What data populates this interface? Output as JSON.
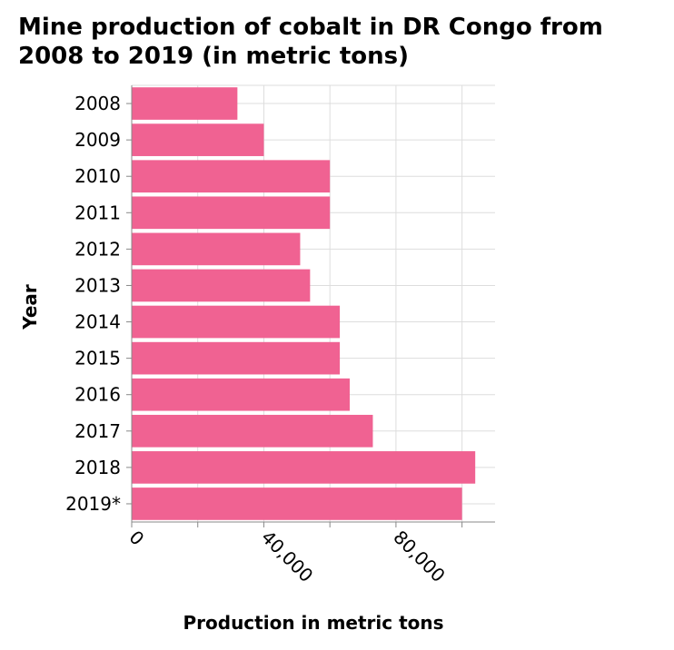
{
  "chart_data": {
    "type": "bar",
    "orientation": "horizontal",
    "title": "Mine production of cobalt in DR Congo from 2008 to 2019 (in metric tons)",
    "xlabel": "Production in metric tons",
    "ylabel": "Year",
    "categories": [
      "2008",
      "2009",
      "2010",
      "2011",
      "2012",
      "2013",
      "2014",
      "2015",
      "2016",
      "2017",
      "2018",
      "2019*"
    ],
    "values": [
      32000,
      40000,
      60000,
      60000,
      51000,
      54000,
      63000,
      63000,
      66000,
      73000,
      104000,
      100000
    ],
    "xlim": [
      0,
      110000
    ],
    "x_tick_values": [
      0,
      40000,
      80000
    ],
    "x_tick_labels": [
      "0",
      "40,000",
      "80,000"
    ],
    "x_grid_step": 20000,
    "grid": true,
    "legend": "none",
    "bar_color": "#f06292"
  }
}
